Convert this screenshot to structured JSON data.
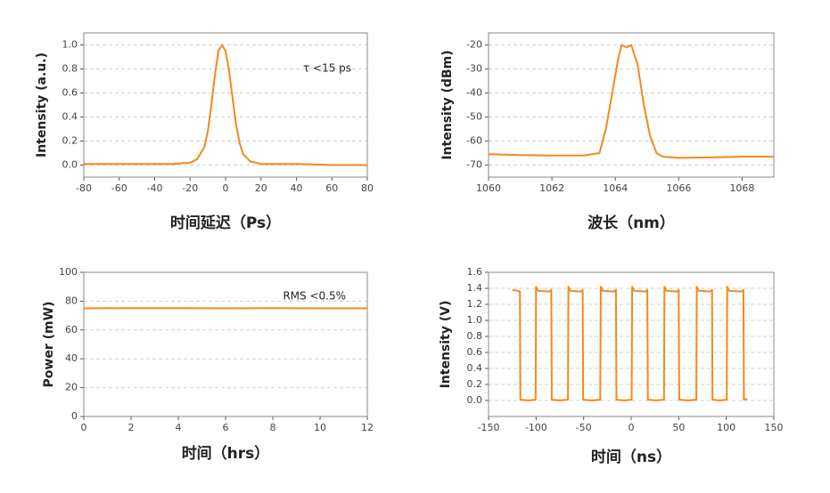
{
  "chart_data": [
    {
      "type": "line",
      "xlabel": "时间延迟（Ps）",
      "ylabel": "Intensity (a.u.)",
      "annotation": "τ <15 ps",
      "color": "#f28a1c",
      "grid": true,
      "xlim": [
        -80,
        80
      ],
      "xticks": [
        -80,
        -60,
        -40,
        -20,
        0,
        20,
        40,
        60,
        80
      ],
      "ylim": [
        -0.1,
        1.1
      ],
      "yticks": [
        {
          "value": 0,
          "label": "0.0"
        },
        0.2,
        0.4,
        0.6,
        0.8,
        {
          "value": 1,
          "label": "1.0"
        }
      ],
      "x": [
        -80,
        -60,
        -40,
        -30,
        -20,
        -16,
        -12,
        -10,
        -8,
        -6,
        -4,
        -2,
        0,
        2,
        4,
        6,
        8,
        10,
        14,
        20,
        30,
        40,
        60,
        80
      ],
      "values": [
        0.01,
        0.01,
        0.01,
        0.01,
        0.02,
        0.05,
        0.15,
        0.28,
        0.5,
        0.75,
        0.95,
        1.0,
        0.95,
        0.78,
        0.55,
        0.33,
        0.18,
        0.09,
        0.03,
        0.01,
        0.01,
        0.01,
        0.0,
        0.0
      ]
    },
    {
      "type": "line",
      "xlabel": "波长（nm）",
      "ylabel": "Intensity (dBm)",
      "color": "#f28a1c",
      "grid": true,
      "xlim": [
        1060,
        1069
      ],
      "xticks": [
        1060,
        1062,
        1064,
        1066,
        1068
      ],
      "ylim": [
        -75,
        -15
      ],
      "yticks": [
        -70,
        -60,
        -50,
        -40,
        -30,
        -20
      ],
      "x": [
        1060,
        1061,
        1062,
        1063,
        1063.5,
        1063.7,
        1063.9,
        1064.1,
        1064.2,
        1064.35,
        1064.5,
        1064.7,
        1064.9,
        1065.1,
        1065.3,
        1065.5,
        1066,
        1067,
        1068,
        1069
      ],
      "values": [
        -65.5,
        -65.8,
        -66,
        -66,
        -65,
        -55,
        -40,
        -25,
        -20,
        -21,
        -20,
        -28,
        -45,
        -58,
        -65,
        -66.5,
        -67,
        -66.8,
        -66.5,
        -66.5
      ]
    },
    {
      "type": "line",
      "xlabel": "时间（hrs）",
      "ylabel": "Power (mW)",
      "annotation": "RMS <0.5%",
      "color": "#f28a1c",
      "grid": true,
      "xlim": [
        0,
        12
      ],
      "xticks": [
        0,
        2,
        4,
        6,
        8,
        10,
        12
      ],
      "ylim": [
        0,
        100
      ],
      "yticks": [
        0,
        20,
        40,
        60,
        80,
        100
      ],
      "x": [
        0,
        2,
        4,
        6,
        8,
        10,
        12
      ],
      "values": [
        75,
        75.2,
        75.1,
        75,
        75.1,
        75,
        75
      ]
    },
    {
      "type": "line",
      "xlabel": "时间（ns）",
      "ylabel": "Intensity (V)",
      "color": "#f28a1c",
      "grid": true,
      "xlim": [
        -150,
        150
      ],
      "xticks": [
        -150,
        -100,
        -50,
        0,
        50,
        100,
        150
      ],
      "ylim": [
        -0.2,
        1.6
      ],
      "yticks": [
        {
          "value": 0,
          "label": "0.0"
        },
        0.2,
        0.4,
        0.6,
        0.8,
        {
          "value": 1,
          "label": "1.0"
        },
        1.2,
        1.4,
        1.6
      ],
      "x": [
        -125,
        -120,
        -117,
        -116.5,
        -108,
        -100.5,
        -100,
        -98,
        -86,
        -84,
        -83.5,
        -75,
        -66.5,
        -66,
        -64,
        -53,
        -51,
        -50.5,
        -41,
        -32.5,
        -32,
        -30,
        -18,
        -16,
        -15.5,
        -7,
        0.5,
        1,
        3,
        15,
        17,
        17.5,
        26,
        34.5,
        35,
        37,
        48,
        50,
        50.5,
        60,
        68.5,
        69,
        71,
        83,
        85,
        85.5,
        93,
        100.5,
        101,
        103,
        116,
        118,
        118.5,
        122
      ],
      "values": [
        1.38,
        1.37,
        1.36,
        0.01,
        0.0,
        0.01,
        1.42,
        1.37,
        1.36,
        1.38,
        0.01,
        0.0,
        0.01,
        1.42,
        1.37,
        1.36,
        1.38,
        0.01,
        0.0,
        0.01,
        1.42,
        1.37,
        1.36,
        1.38,
        0.01,
        0.0,
        0.01,
        1.42,
        1.37,
        1.36,
        1.38,
        0.01,
        0.0,
        0.01,
        1.42,
        1.37,
        1.36,
        1.38,
        0.01,
        0.0,
        0.01,
        1.42,
        1.37,
        1.36,
        1.38,
        0.01,
        0.0,
        0.01,
        1.42,
        1.37,
        1.36,
        1.38,
        0.01,
        0.02
      ]
    }
  ]
}
